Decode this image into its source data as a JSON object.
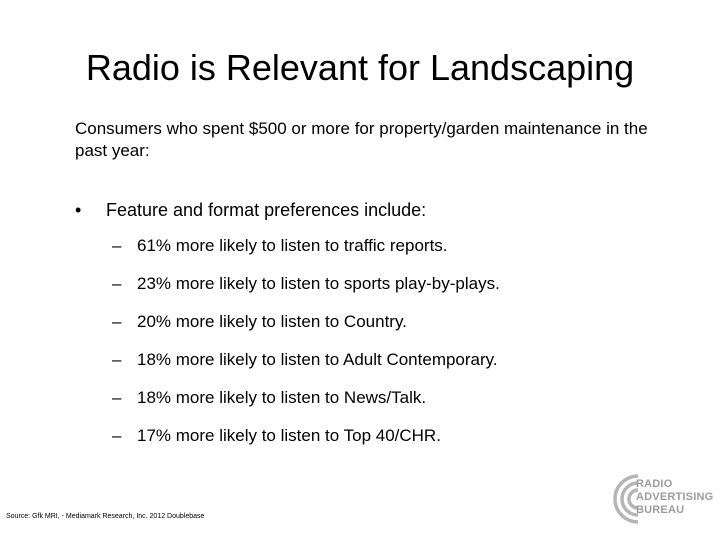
{
  "slide": {
    "title": "Radio is Relevant for Landscaping",
    "intro": "Consumers who spent $500 or more for property/garden maintenance in the past year:",
    "bullet": {
      "marker": "•",
      "text": "Feature and format preferences include:"
    },
    "sub_items": [
      {
        "marker": "–",
        "text": "61% more likely to listen to traffic reports."
      },
      {
        "marker": "–",
        "text": "23% more likely to listen to sports play-by-plays."
      },
      {
        "marker": "–",
        "text": "20% more likely to listen to Country."
      },
      {
        "marker": "–",
        "text": "18% more likely to listen to Adult Contemporary."
      },
      {
        "marker": "–",
        "text": "18% more likely to listen to News/Talk."
      },
      {
        "marker": "–",
        "text": "17% more likely to listen to Top 40/CHR."
      }
    ],
    "source": "Source: Gfk MRI, - Mediamark Research, Inc. 2012 Doublebase"
  },
  "logo": {
    "lines": [
      "RADIO",
      "ADVERTISING",
      "BUREAU"
    ],
    "color": "#9c9c9c",
    "icon": "rab-logo-icon"
  }
}
